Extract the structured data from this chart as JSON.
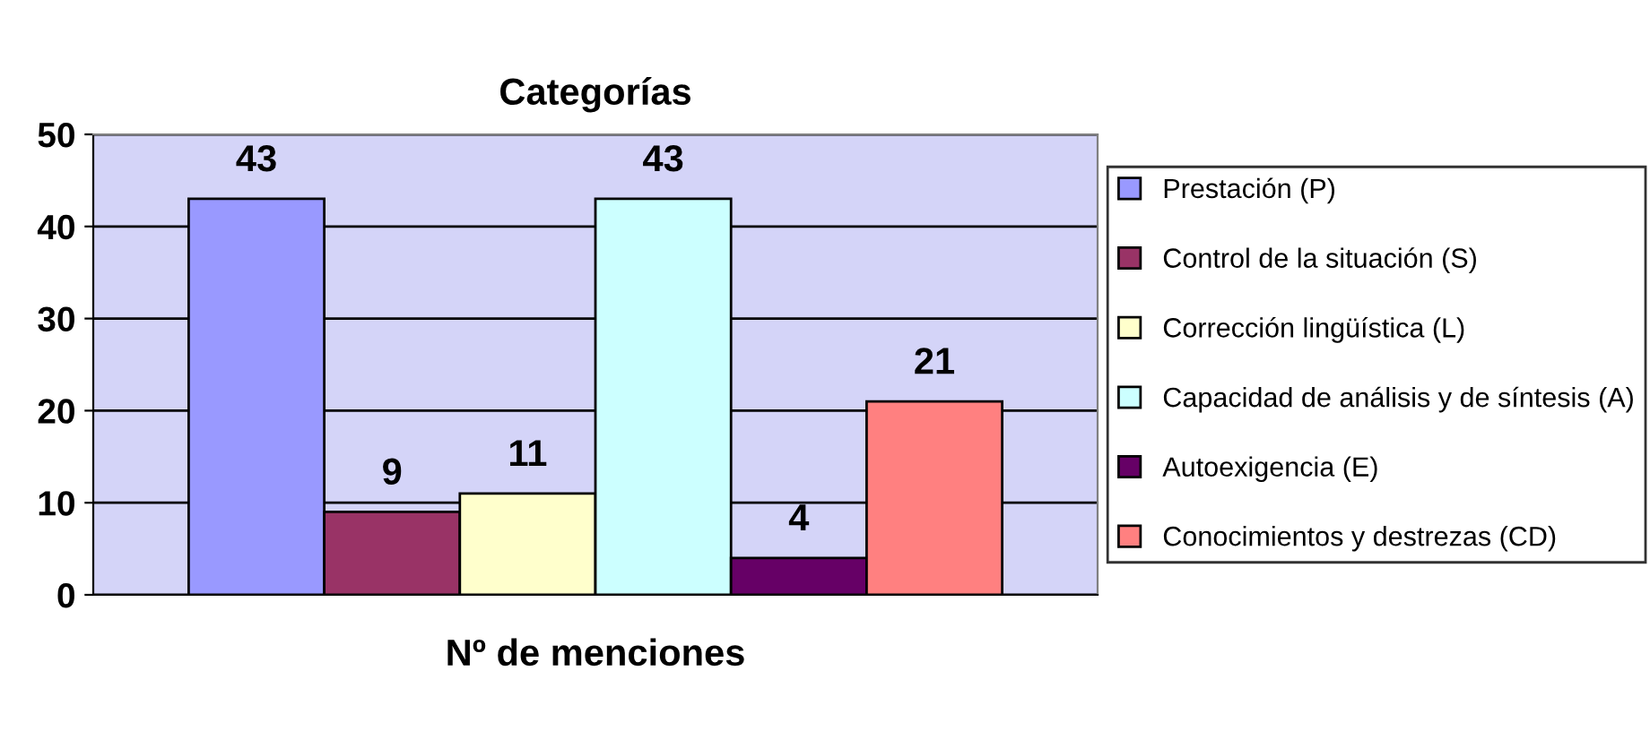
{
  "chart_data": {
    "type": "bar",
    "title": "Categorías",
    "xlabel": "Nº de menciones",
    "categories": [
      null
    ],
    "series": [
      {
        "name": "Prestación (P)",
        "color": "#9999ff",
        "values": [
          43
        ]
      },
      {
        "name": "Control de la situación (S)",
        "color": "#993366",
        "values": [
          9
        ]
      },
      {
        "name": "Corrección lingüística (L)",
        "color": "#ffffcc",
        "values": [
          11
        ]
      },
      {
        "name": "Capacidad de análisis y de síntesis (A)",
        "color": "#ccffff",
        "values": [
          43
        ]
      },
      {
        "name": "Autoexigencia (E)",
        "color": "#660066",
        "values": [
          4
        ]
      },
      {
        "name": "Conocimientos y destrezas (CD)",
        "color": "#ff8080",
        "values": [
          21
        ]
      }
    ],
    "ylim": [
      0,
      50
    ],
    "yticks": [
      0,
      10,
      20,
      30,
      40,
      50
    ],
    "grid": "y",
    "legend": "right",
    "data_labels": true
  }
}
